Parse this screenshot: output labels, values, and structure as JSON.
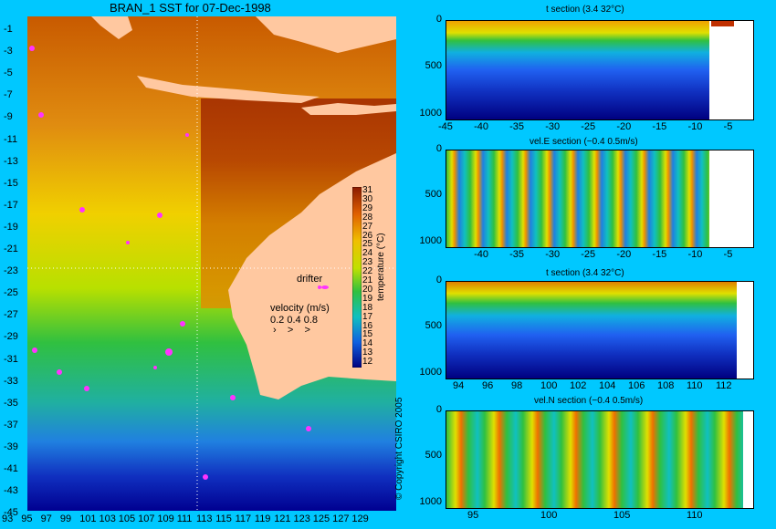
{
  "map": {
    "title": "BRAN_1 SST for 07-Dec-1998",
    "lat_ticks": [
      "-1",
      "-3",
      "-5",
      "-7",
      "-9",
      "-11",
      "-13",
      "-15",
      "-17",
      "-19",
      "-21",
      "-23",
      "-25",
      "-27",
      "-29",
      "-31",
      "-33",
      "-35",
      "-37",
      "-39",
      "-41",
      "-43",
      "-45"
    ],
    "lon_ticks": [
      "93",
      "95",
      "97",
      "99",
      "101",
      "103",
      "105",
      "107",
      "109",
      "111",
      "113",
      "115",
      "117",
      "119",
      "121",
      "123",
      "125",
      "127",
      "129"
    ],
    "drifter_label": "drifter",
    "velocity_label": "velocity (m/s)",
    "velocity_scale": "0.2 0.4 0.8",
    "colorbar_ticks": [
      "31",
      "30",
      "29",
      "28",
      "27",
      "26",
      "25",
      "24",
      "23",
      "22",
      "21",
      "20",
      "19",
      "18",
      "17",
      "16",
      "15",
      "14",
      "13",
      "12"
    ],
    "colorbar_label": "temperature (°C)",
    "copyright": "© Copyright CSIRO 2005"
  },
  "sections": [
    {
      "title": "t section (3.4      32°C)",
      "yticks": [
        "0",
        "500",
        "1000"
      ],
      "xticks": [
        "-45",
        "-40",
        "-35",
        "-30",
        "-25",
        "-20",
        "-15",
        "-10",
        "-5"
      ]
    },
    {
      "title": "vel.E section (−0.4      0.5m/s)",
      "yticks": [
        "0",
        "500",
        "1000"
      ],
      "xticks": [
        "-40",
        "-35",
        "-30",
        "-25",
        "-20",
        "-15",
        "-10",
        "-5"
      ]
    },
    {
      "title": "t section (3.4      32°C)",
      "yticks": [
        "0",
        "500",
        "1000"
      ],
      "xticks": [
        "94",
        "96",
        "98",
        "100",
        "102",
        "104",
        "106",
        "108",
        "110",
        "112"
      ]
    },
    {
      "title": "vel.N section (−0.4      0.5m/s)",
      "yticks": [
        "0",
        "500",
        "1000"
      ],
      "xticks": [
        "95",
        "100",
        "105",
        "110"
      ]
    }
  ],
  "colors": {
    "background": "#00C8FF",
    "land": "#FFC8A0",
    "drifter": "#FF33FF"
  },
  "chart_data": [
    {
      "type": "heatmap",
      "title": "BRAN_1 SST for 07-Dec-1998",
      "xlim": [
        93,
        130
      ],
      "ylim": [
        -45,
        0
      ],
      "colorbar_range": [
        12,
        31
      ],
      "colorbar_label": "temperature (°C)"
    },
    {
      "type": "heatmap",
      "title": "t section (3.4      32°C)",
      "xlim": [
        -45,
        -2
      ],
      "ylim": [
        1050,
        0
      ],
      "color_range": [
        3.4,
        32
      ]
    },
    {
      "type": "heatmap",
      "title": "vel.E section (−0.4      0.5m/s)",
      "xlim": [
        -45,
        -2
      ],
      "ylim": [
        1050,
        0
      ],
      "color_range": [
        -0.4,
        0.5
      ]
    },
    {
      "type": "heatmap",
      "title": "t section (3.4      32°C)",
      "xlim": [
        93,
        114
      ],
      "ylim": [
        1050,
        0
      ],
      "color_range": [
        3.4,
        32
      ]
    },
    {
      "type": "heatmap",
      "title": "vel.N section (−0.4      0.5m/s)",
      "xlim": [
        93,
        114
      ],
      "ylim": [
        1050,
        0
      ],
      "color_range": [
        -0.4,
        0.5
      ]
    }
  ]
}
